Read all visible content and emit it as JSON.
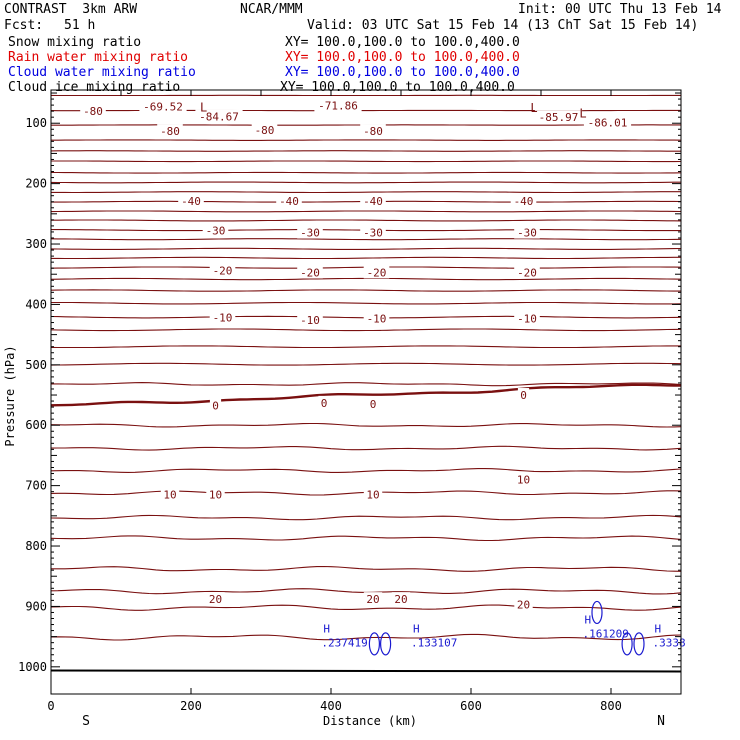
{
  "header": {
    "model": "CONTRAST  3km ARW",
    "org": "NCAR/MMM",
    "init": "Init: 00 UTC Thu 13 Feb 14",
    "fcst_label": "Fcst:",
    "fcst_value": "51 h",
    "valid": "Valid: 03 UTC Sat 15 Feb 14 (13 ChT Sat 15 Feb 14)"
  },
  "legend": [
    {
      "label": "Snow mixing ratio",
      "xy": "XY= 100.0,100.0 to 100.0,400.0",
      "color": "#000000"
    },
    {
      "label": "Rain water mixing ratio",
      "xy": "XY= 100.0,100.0 to 100.0,400.0",
      "color": "#e00000"
    },
    {
      "label": "Cloud water mixing ratio",
      "xy": "XY= 100.0,100.0 to 100.0,400.0",
      "color": "#0000e0"
    },
    {
      "label": "Cloud ice mixing ratio",
      "xy": "XY= 100.0,100.0 to 100.0,400.0",
      "color": "#000000"
    }
  ],
  "colors": {
    "contour": "#7a1010",
    "cloud": "#1a1ad0",
    "axis": "#000000"
  },
  "chart_data": {
    "type": "contour cross-section",
    "xlabel": "Distance (km)",
    "ylabel": "Pressure (hPa)",
    "xlim": [
      0,
      900
    ],
    "ylim": [
      1045,
      45
    ],
    "x_ticks": [
      0,
      200,
      400,
      600,
      800
    ],
    "y_ticks": [
      100,
      200,
      300,
      400,
      500,
      600,
      700,
      800,
      900,
      1000
    ],
    "endpoint_left": "S",
    "endpoint_right": "N",
    "surface_pressure": 1006,
    "contour_pressures": [
      54,
      79,
      103,
      128,
      146,
      163,
      182,
      198,
      214,
      230,
      246,
      261,
      277,
      292,
      308,
      323,
      339,
      358,
      377,
      398,
      421,
      442,
      470,
      499,
      532,
      568,
      600,
      638,
      675,
      712,
      753,
      787,
      838,
      875,
      902,
      951
    ],
    "freezing_level_index": 25,
    "contour_labels": [
      {
        "text": "-80",
        "x": 60,
        "p": 80
      },
      {
        "text": "-69.52",
        "x": 160,
        "p": 72
      },
      {
        "text": "-84.67",
        "x": 240,
        "p": 89
      },
      {
        "text": "-80",
        "x": 170,
        "p": 113
      },
      {
        "text": "-80",
        "x": 305,
        "p": 111
      },
      {
        "text": "-71.86",
        "x": 410,
        "p": 71
      },
      {
        "text": "-80",
        "x": 460,
        "p": 113
      },
      {
        "text": "-85.97",
        "x": 725,
        "p": 90
      },
      {
        "text": "-86.01",
        "x": 795,
        "p": 99
      },
      {
        "text": "-40",
        "x": 200,
        "p": 229
      },
      {
        "text": "-40",
        "x": 340,
        "p": 229
      },
      {
        "text": "-40",
        "x": 460,
        "p": 229
      },
      {
        "text": "-40",
        "x": 675,
        "p": 229
      },
      {
        "text": "-30",
        "x": 235,
        "p": 278
      },
      {
        "text": "-30",
        "x": 370,
        "p": 281
      },
      {
        "text": "-30",
        "x": 460,
        "p": 281
      },
      {
        "text": "-30",
        "x": 680,
        "p": 281
      },
      {
        "text": "-20",
        "x": 245,
        "p": 344
      },
      {
        "text": "-20",
        "x": 370,
        "p": 347
      },
      {
        "text": "-20",
        "x": 465,
        "p": 347
      },
      {
        "text": "-20",
        "x": 680,
        "p": 347
      },
      {
        "text": "-10",
        "x": 245,
        "p": 422
      },
      {
        "text": "-10",
        "x": 370,
        "p": 426
      },
      {
        "text": "-10",
        "x": 465,
        "p": 423
      },
      {
        "text": "-10",
        "x": 680,
        "p": 423
      },
      {
        "text": "0",
        "x": 235,
        "p": 567
      },
      {
        "text": "0",
        "x": 390,
        "p": 563
      },
      {
        "text": "0",
        "x": 460,
        "p": 565
      },
      {
        "text": "0",
        "x": 675,
        "p": 550
      },
      {
        "text": "10",
        "x": 170,
        "p": 715
      },
      {
        "text": "10",
        "x": 235,
        "p": 715
      },
      {
        "text": "10",
        "x": 460,
        "p": 715
      },
      {
        "text": "10",
        "x": 675,
        "p": 690
      },
      {
        "text": "20",
        "x": 235,
        "p": 888
      },
      {
        "text": "20",
        "x": 460,
        "p": 888
      },
      {
        "text": "20",
        "x": 500,
        "p": 888
      },
      {
        "text": "20",
        "x": 675,
        "p": 897
      }
    ],
    "lows": [
      {
        "text": "L",
        "x": 218,
        "p": 74
      },
      {
        "text": "L",
        "x": 690,
        "p": 75
      },
      {
        "text": "L",
        "x": 760,
        "p": 84
      }
    ],
    "cloud_highs": [
      {
        "text": "H",
        "value": ".237419",
        "x": 392,
        "p": 955
      },
      {
        "text": "H",
        "value": ".133107",
        "x": 520,
        "p": 955
      },
      {
        "text": "H",
        "value": ".161209",
        "x": 765,
        "p": 940
      },
      {
        "text": "H",
        "value": ".3338",
        "x": 865,
        "p": 955
      }
    ]
  }
}
